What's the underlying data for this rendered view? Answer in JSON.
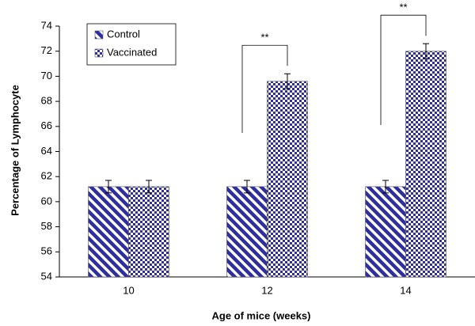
{
  "chart_data": {
    "type": "bar",
    "xlabel": "Age of mice (weeks)",
    "ylabel": "Percentage of Lymphocyte",
    "categories": [
      "10",
      "12",
      "14"
    ],
    "series": [
      {
        "name": "Control",
        "color": "#2e2e9e",
        "values": [
          61.2,
          61.2,
          61.2
        ],
        "errors": [
          0.5,
          0.5,
          0.5
        ]
      },
      {
        "name": "Vaccinated",
        "color": "#2e2e9e",
        "values": [
          61.2,
          69.6,
          72.0
        ],
        "errors": [
          0.5,
          0.6,
          0.6
        ]
      }
    ],
    "annotations": [
      "**",
      "**"
    ],
    "ylim": [
      54,
      74
    ],
    "yticks": [
      54,
      56,
      58,
      60,
      62,
      64,
      66,
      68,
      70,
      72,
      74
    ],
    "grid": false,
    "legend": "upper left"
  }
}
